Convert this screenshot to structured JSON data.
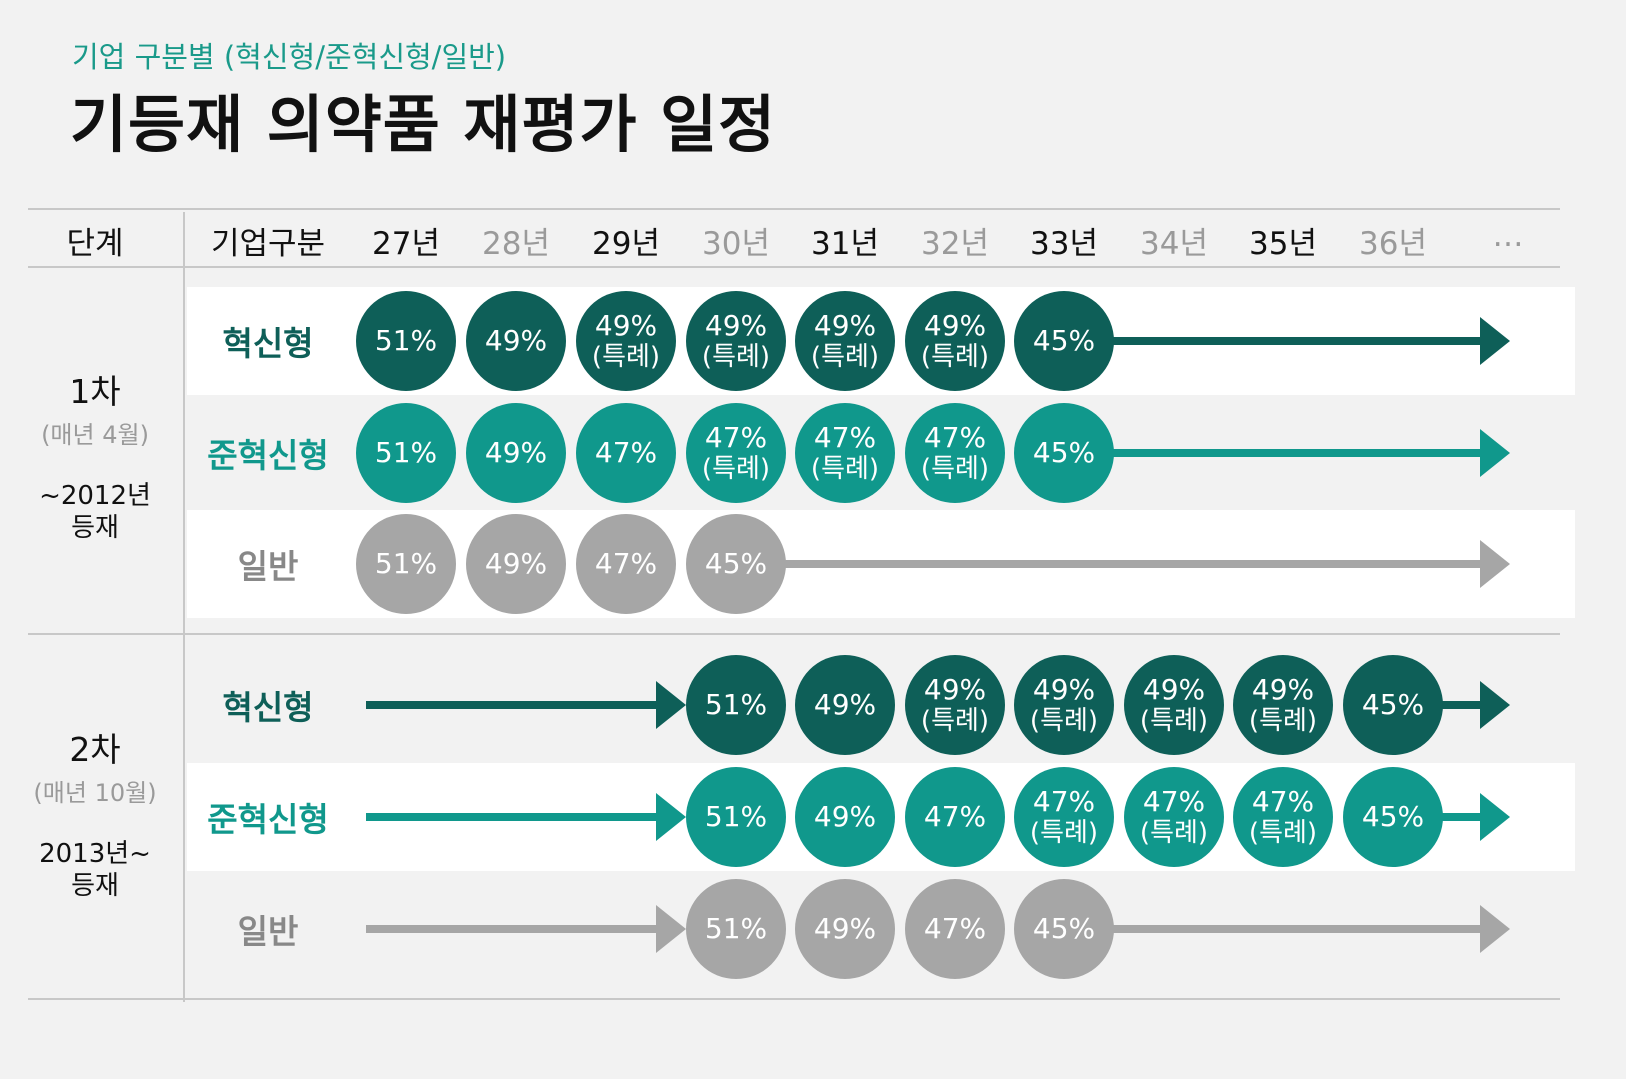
{
  "header": {
    "subtitle": "기업 구분별 (혁신형/준혁신형/일반)",
    "title": "기등재 의약품 재평가 일정"
  },
  "columns": {
    "stage_label": "단계",
    "category_label": "기업구분",
    "years": [
      "27년",
      "28년",
      "29년",
      "30년",
      "31년",
      "32년",
      "33년",
      "34년",
      "35년",
      "36년"
    ],
    "more": "…"
  },
  "colors": {
    "innovative": "#0e5f58",
    "semi": "#10988c",
    "general": "#a6a6a6",
    "accent_text": "#1a9a8a"
  },
  "stages": [
    {
      "name": "1차",
      "schedule": "(매년 4월)",
      "registration_1": "~2012년",
      "registration_2": "등재",
      "rows": [
        {
          "category": "혁신형",
          "type": "innovative",
          "lead_arrow": false,
          "start_col": 0,
          "cells": [
            {
              "pct": "51%"
            },
            {
              "pct": "49%"
            },
            {
              "pct": "49%",
              "note": "(특례)"
            },
            {
              "pct": "49%",
              "note": "(특례)"
            },
            {
              "pct": "49%",
              "note": "(특례)"
            },
            {
              "pct": "49%",
              "note": "(특례)"
            },
            {
              "pct": "45%"
            }
          ]
        },
        {
          "category": "준혁신형",
          "type": "semi",
          "lead_arrow": false,
          "start_col": 0,
          "cells": [
            {
              "pct": "51%"
            },
            {
              "pct": "49%"
            },
            {
              "pct": "47%"
            },
            {
              "pct": "47%",
              "note": "(특례)"
            },
            {
              "pct": "47%",
              "note": "(특례)"
            },
            {
              "pct": "47%",
              "note": "(특례)"
            },
            {
              "pct": "45%"
            }
          ]
        },
        {
          "category": "일반",
          "type": "general",
          "lead_arrow": false,
          "start_col": 0,
          "cells": [
            {
              "pct": "51%"
            },
            {
              "pct": "49%"
            },
            {
              "pct": "47%"
            },
            {
              "pct": "45%"
            }
          ]
        }
      ]
    },
    {
      "name": "2차",
      "schedule": "(매년 10월)",
      "registration_1": "2013년~",
      "registration_2": "등재",
      "rows": [
        {
          "category": "혁신형",
          "type": "innovative",
          "lead_arrow": true,
          "start_col": 3,
          "cells": [
            {
              "pct": "51%"
            },
            {
              "pct": "49%"
            },
            {
              "pct": "49%",
              "note": "(특례)"
            },
            {
              "pct": "49%",
              "note": "(특례)"
            },
            {
              "pct": "49%",
              "note": "(특례)"
            },
            {
              "pct": "49%",
              "note": "(특례)"
            },
            {
              "pct": "45%"
            }
          ]
        },
        {
          "category": "준혁신형",
          "type": "semi",
          "lead_arrow": true,
          "start_col": 3,
          "cells": [
            {
              "pct": "51%"
            },
            {
              "pct": "49%"
            },
            {
              "pct": "47%"
            },
            {
              "pct": "47%",
              "note": "(특례)"
            },
            {
              "pct": "47%",
              "note": "(특례)"
            },
            {
              "pct": "47%",
              "note": "(특례)"
            },
            {
              "pct": "45%"
            }
          ]
        },
        {
          "category": "일반",
          "type": "general",
          "lead_arrow": true,
          "start_col": 3,
          "cells": [
            {
              "pct": "51%"
            },
            {
              "pct": "49%"
            },
            {
              "pct": "47%"
            },
            {
              "pct": "45%"
            }
          ]
        }
      ]
    }
  ]
}
